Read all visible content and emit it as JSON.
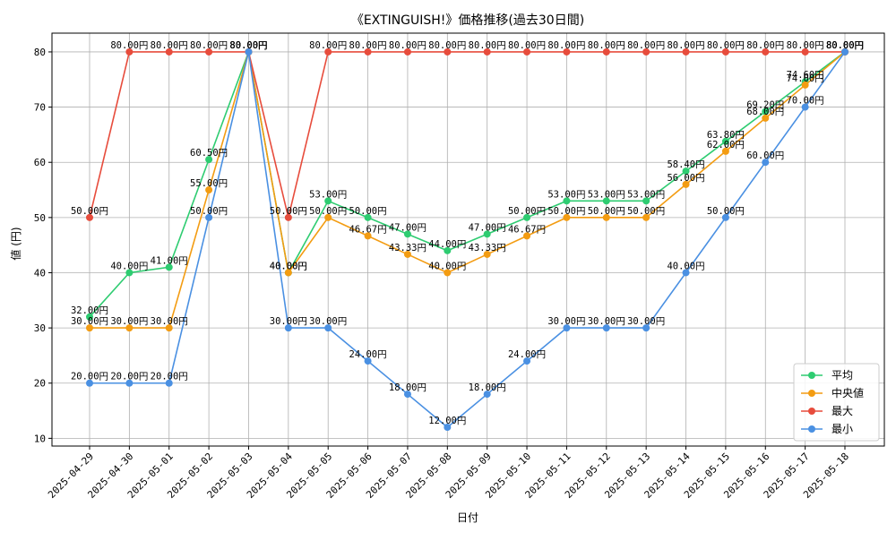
{
  "chart_data": {
    "type": "line",
    "title": "《EXTINGUISH!》価格推移(過去30日間)",
    "xlabel": "日付",
    "ylabel": "値 (円)",
    "unit_suffix": "円",
    "ylim": [
      8.6,
      83.4
    ],
    "yticks": [
      10,
      20,
      30,
      40,
      50,
      60,
      70,
      80
    ],
    "grid": true,
    "legend_position": "lower-right",
    "categories": [
      "2025-04-29",
      "2025-04-30",
      "2025-05-01",
      "2025-05-02",
      "2025-05-03",
      "2025-05-04",
      "2025-05-05",
      "2025-05-06",
      "2025-05-07",
      "2025-05-08",
      "2025-05-09",
      "2025-05-10",
      "2025-05-11",
      "2025-05-12",
      "2025-05-13",
      "2025-05-14",
      "2025-05-15",
      "2025-05-16",
      "2025-05-17",
      "2025-05-18"
    ],
    "series": [
      {
        "name": "平均",
        "color": "#2ecc71",
        "values": [
          32.0,
          40.0,
          41.0,
          60.5,
          80.0,
          40.0,
          53.0,
          50.0,
          47.0,
          44.0,
          47.0,
          50.0,
          53.0,
          53.0,
          53.0,
          58.4,
          63.8,
          69.2,
          74.6,
          80.0
        ]
      },
      {
        "name": "中央値",
        "color": "#f39c12",
        "values": [
          30.0,
          30.0,
          30.0,
          55.0,
          80.0,
          40.0,
          50.0,
          46.67,
          43.33,
          40.0,
          43.33,
          46.67,
          50.0,
          50.0,
          50.0,
          56.0,
          62.0,
          68.0,
          74.0,
          80.0
        ]
      },
      {
        "name": "最大",
        "color": "#e74c3c",
        "values": [
          50.0,
          80.0,
          80.0,
          80.0,
          80.0,
          50.0,
          80.0,
          80.0,
          80.0,
          80.0,
          80.0,
          80.0,
          80.0,
          80.0,
          80.0,
          80.0,
          80.0,
          80.0,
          80.0,
          80.0
        ]
      },
      {
        "name": "最小",
        "color": "#4a90e2",
        "values": [
          20.0,
          20.0,
          20.0,
          50.0,
          80.0,
          30.0,
          30.0,
          24.0,
          18.0,
          12.0,
          18.0,
          24.0,
          30.0,
          30.0,
          30.0,
          40.0,
          50.0,
          60.0,
          70.0,
          80.0
        ]
      }
    ]
  }
}
